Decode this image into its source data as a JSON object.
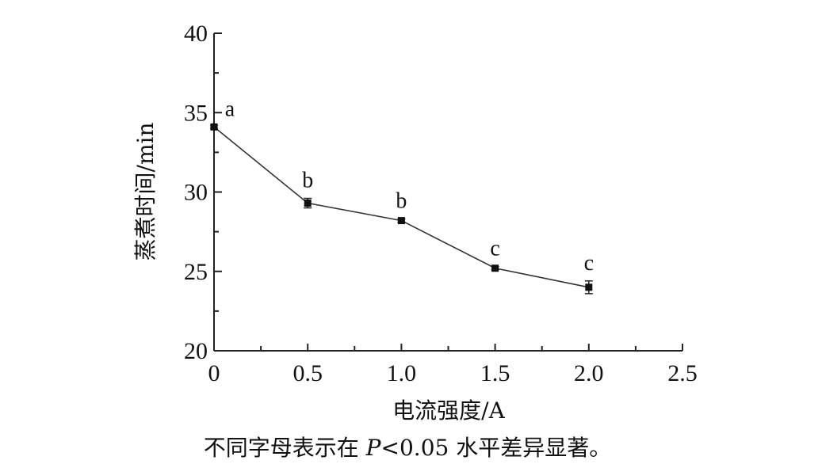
{
  "chart_data": {
    "type": "line",
    "title": "",
    "xlabel": "电流强度/A",
    "ylabel": "蒸煮时间/min",
    "xlim": [
      0,
      2.5
    ],
    "ylim": [
      20,
      40
    ],
    "x_ticks": [
      0,
      0.5,
      1.0,
      1.5,
      2.0,
      2.5
    ],
    "x_tick_labels": [
      "0",
      "0.5",
      "1.0",
      "1.5",
      "2.0",
      "2.5"
    ],
    "y_ticks": [
      20,
      25,
      30,
      35,
      40
    ],
    "y_tick_labels": [
      "20",
      "25",
      "30",
      "35",
      "40"
    ],
    "grid": false,
    "series": [
      {
        "x": [
          0,
          0.5,
          1.0,
          1.5,
          2.0
        ],
        "y": [
          34.1,
          29.3,
          28.2,
          25.2,
          24.0
        ],
        "error": [
          0.1,
          0.3,
          0.1,
          0.1,
          0.4
        ],
        "labels": [
          "a",
          "b",
          "b",
          "c",
          "c"
        ]
      }
    ],
    "note": {
      "before": "不同字母表示在 ",
      "italic": "P",
      "after": "<0.05 水平差异显著。"
    }
  }
}
